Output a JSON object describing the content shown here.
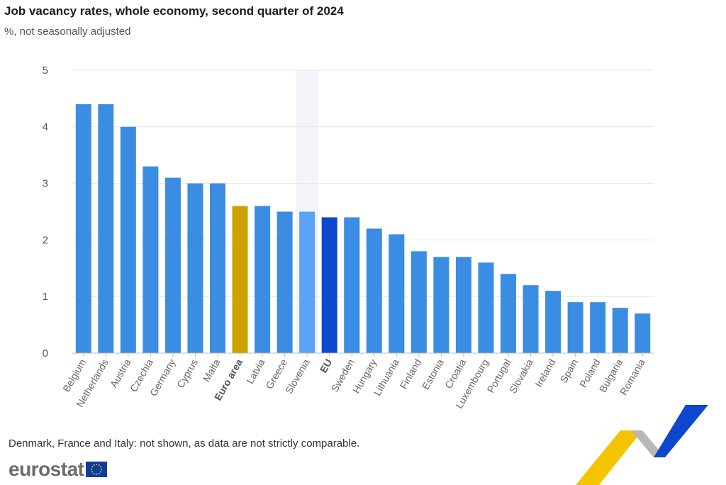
{
  "chart_data": {
    "type": "bar",
    "title": "Job vacancy rates, whole economy, second quarter of 2024",
    "subtitle": "%, not seasonally adjusted",
    "xlabel": "",
    "ylabel": "",
    "ylim": [
      0,
      5
    ],
    "yticks": [
      0,
      1,
      2,
      3,
      4,
      5
    ],
    "grid": true,
    "legend": "none",
    "categories": [
      "Belgium",
      "Netherlands",
      "Austria",
      "Czechia",
      "Germany",
      "Cyprus",
      "Malta",
      "Euro area",
      "Latvia",
      "Greece",
      "Slovenia",
      "EU",
      "Sweden",
      "Hungary",
      "Lithuania",
      "Finland",
      "Estonia",
      "Croatia",
      "Luxembourg",
      "Portugal",
      "Slovakia",
      "Ireland",
      "Spain",
      "Poland",
      "Bulgaria",
      "Romania"
    ],
    "values": [
      4.4,
      4.4,
      4.0,
      3.3,
      3.1,
      3.0,
      3.0,
      2.6,
      2.6,
      2.5,
      2.5,
      2.4,
      2.4,
      2.2,
      2.1,
      1.8,
      1.7,
      1.7,
      1.6,
      1.4,
      1.2,
      1.1,
      0.9,
      0.9,
      0.8,
      0.7
    ],
    "bold_categories": [
      "Euro area",
      "EU"
    ],
    "highlighted_category": "Slovenia",
    "colors": {
      "default": "#3a8de3",
      "euro_area": "#cca300",
      "eu": "#0d47cf",
      "highlight": "#5aa2f5",
      "highlight_band": "#f3f5fb",
      "grid": "#e6e6e6",
      "axis": "#bbbbbb"
    }
  },
  "footnote": "Denmark, France and Italy: not shown, as data are not strictly comparable.",
  "branding": {
    "logo_text": "eurostat",
    "flag_color": "#0d3b9e",
    "stars_color": "#ffcc00",
    "ribbon_colors": [
      "#f5c400",
      "#b7b7b7",
      "#0d47cf"
    ]
  }
}
